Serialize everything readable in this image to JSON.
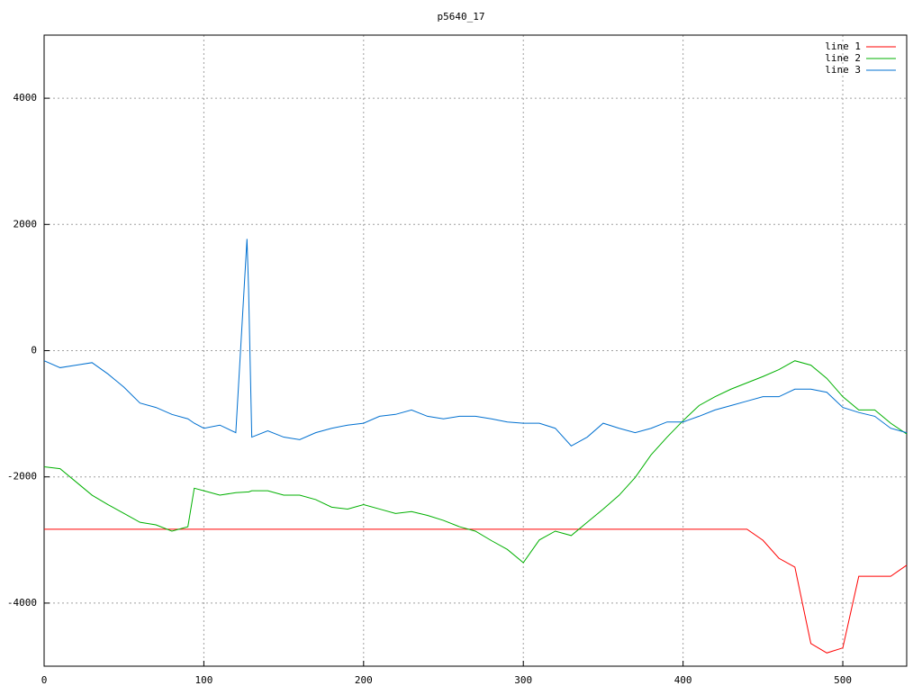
{
  "chart_data": {
    "type": "line",
    "title": "p5640_17",
    "x": [
      0,
      10,
      20,
      30,
      40,
      50,
      60,
      70,
      80,
      90,
      94,
      100,
      110,
      120,
      127,
      128,
      130,
      140,
      150,
      160,
      170,
      180,
      190,
      200,
      210,
      220,
      230,
      240,
      250,
      260,
      270,
      280,
      290,
      300,
      310,
      320,
      330,
      340,
      350,
      360,
      370,
      380,
      390,
      400,
      410,
      420,
      430,
      440,
      450,
      460,
      470,
      480,
      490,
      500,
      510,
      520,
      530,
      540
    ],
    "series": [
      {
        "name": "line 1",
        "color": "#ff0000",
        "values": [
          -2830,
          -2830,
          -2830,
          -2830,
          -2830,
          -2830,
          -2830,
          -2830,
          -2830,
          -2830,
          -2830,
          -2830,
          -2830,
          -2830,
          -2830,
          -2830,
          -2830,
          -2830,
          -2830,
          -2830,
          -2830,
          -2830,
          -2830,
          -2830,
          -2830,
          -2830,
          -2830,
          -2830,
          -2830,
          -2830,
          -2830,
          -2830,
          -2830,
          -2830,
          -2830,
          -2830,
          -2830,
          -2830,
          -2830,
          -2830,
          -2830,
          -2830,
          -2830,
          -2830,
          -2830,
          -2830,
          -2830,
          -2830,
          -3005,
          -3290,
          -3430,
          -4640,
          -4790,
          -4710,
          -3575,
          -3575,
          -3575,
          -3400
        ]
      },
      {
        "name": "line 2",
        "color": "#00b000",
        "values": [
          -1840,
          -1870,
          -2080,
          -2290,
          -2440,
          -2580,
          -2720,
          -2760,
          -2860,
          -2790,
          -2180,
          -2220,
          -2290,
          -2250,
          -2240,
          -2240,
          -2220,
          -2220,
          -2290,
          -2290,
          -2360,
          -2480,
          -2510,
          -2440,
          -2510,
          -2580,
          -2550,
          -2610,
          -2690,
          -2790,
          -2860,
          -3010,
          -3150,
          -3360,
          -3000,
          -2860,
          -2930,
          -2720,
          -2510,
          -2290,
          -2010,
          -1650,
          -1370,
          -1110,
          -870,
          -730,
          -610,
          -510,
          -410,
          -300,
          -160,
          -230,
          -440,
          -730,
          -940,
          -940,
          -1150,
          -1320
        ]
      },
      {
        "name": "line 3",
        "color": "#0070d0",
        "values": [
          -160,
          -270,
          -230,
          -190,
          -370,
          -580,
          -830,
          -900,
          -1010,
          -1080,
          -1150,
          -1230,
          -1180,
          -1300,
          1770,
          980,
          -1370,
          -1270,
          -1370,
          -1410,
          -1300,
          -1230,
          -1180,
          -1150,
          -1040,
          -1010,
          -940,
          -1040,
          -1080,
          -1040,
          -1040,
          -1080,
          -1130,
          -1150,
          -1150,
          -1230,
          -1510,
          -1370,
          -1150,
          -1230,
          -1300,
          -1230,
          -1130,
          -1130,
          -1040,
          -940,
          -870,
          -800,
          -730,
          -730,
          -610,
          -610,
          -660,
          -900,
          -980,
          -1040,
          -1230,
          -1300
        ]
      }
    ],
    "xlim": [
      0,
      540
    ],
    "xticks": [
      0,
      100,
      200,
      300,
      400,
      500
    ],
    "ylim": [
      -5000,
      5000
    ],
    "yticks": [
      -4000,
      -2000,
      0,
      2000,
      4000
    ],
    "grid": true,
    "legend": "top-right"
  }
}
